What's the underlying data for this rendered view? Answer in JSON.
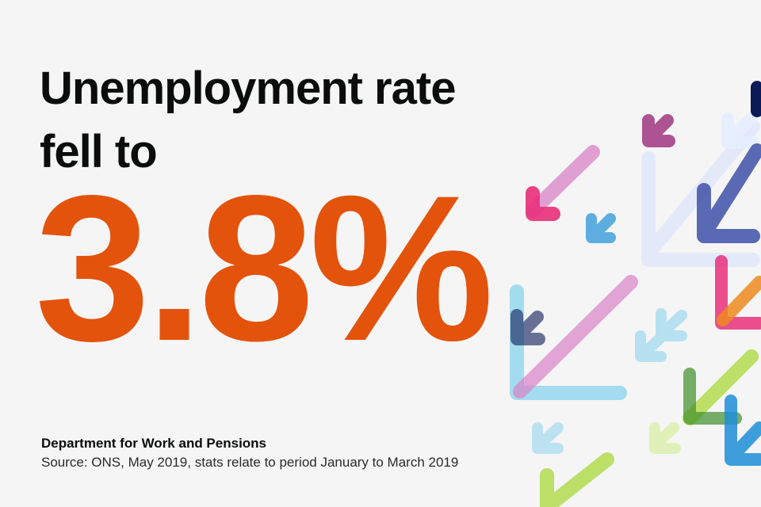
{
  "headline": {
    "line1": "Unemployment rate",
    "line2": "fell to"
  },
  "figure": {
    "value": "3.8%"
  },
  "footer": {
    "organisation": "Department for Work and Pensions",
    "source": "Source: ONS, May 2019, stats relate to period January to March 2019"
  },
  "colors": {
    "background": "#f5f5f5",
    "headline": "#0b0c0c",
    "figure": "#e3530b",
    "arrow_palette": [
      "#d882c6",
      "#e8307a",
      "#8fd4ee",
      "#1f8fd8",
      "#b3dc4f",
      "#3f51a8",
      "#0c1b56",
      "#ef8a1f",
      "#e0eaff",
      "#9a2b7a"
    ]
  },
  "decoration": {
    "icon": "down-left-arrows-icon"
  }
}
